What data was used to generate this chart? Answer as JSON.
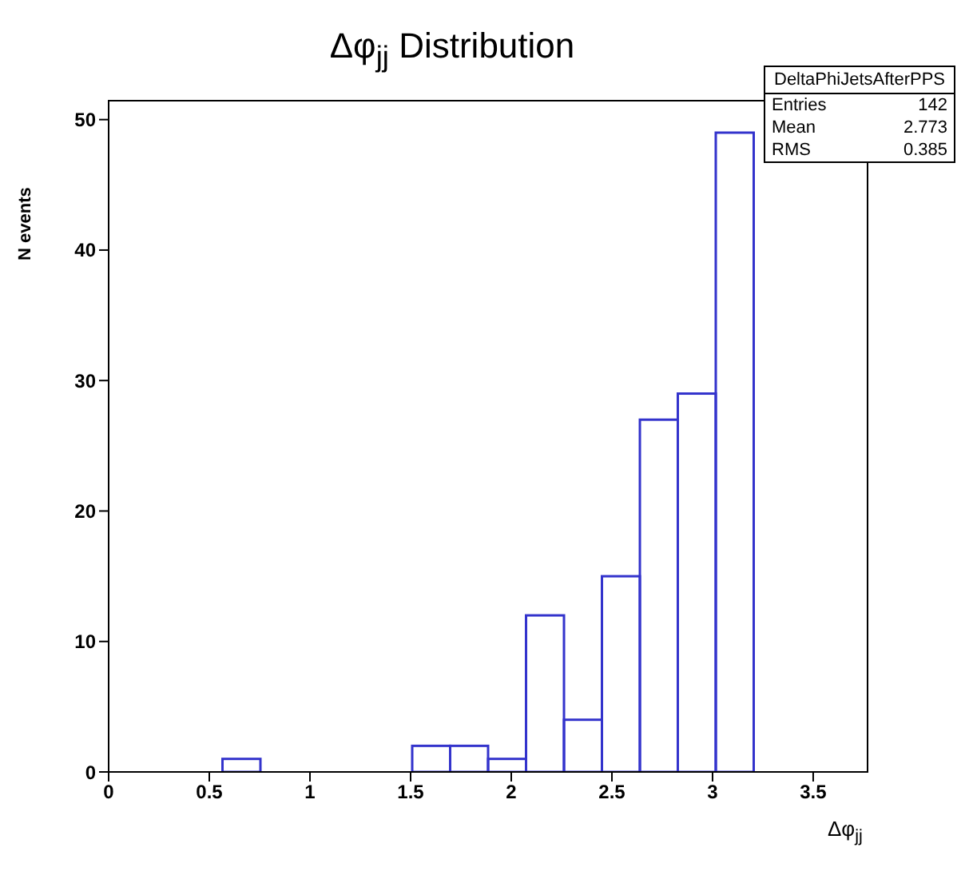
{
  "chart_data": {
    "type": "histogram",
    "title": "Δφ$_{jj}$ Distribution",
    "xlabel": "Δφ$_{jj}$",
    "ylabel": "N events",
    "bins": [
      0,
      0.1885,
      0.377,
      0.5655,
      0.754,
      0.9425,
      1.131,
      1.3195,
      1.508,
      1.6965,
      1.885,
      2.0735,
      2.262,
      2.4505,
      2.639,
      2.8275,
      3.016,
      3.2045,
      3.393,
      3.5815,
      3.77
    ],
    "values": [
      0,
      0,
      0,
      1,
      0,
      0,
      0,
      0,
      2,
      2,
      1,
      12,
      4,
      15,
      27,
      29,
      49,
      0,
      0,
      0
    ],
    "color": "#3333cc",
    "xlim": [
      0,
      3.77
    ],
    "xticks": [
      0,
      0.5,
      1,
      1.5,
      2,
      2.5,
      3,
      3.5
    ],
    "ylim": [
      0,
      51.45
    ],
    "yticks": [
      0,
      10,
      20,
      30,
      40,
      50
    ],
    "annotations": [
      "DeltaPhiJetsAfterPPS",
      "Entries 142",
      "Mean 2.773",
      "RMS 0.385"
    ]
  }
}
